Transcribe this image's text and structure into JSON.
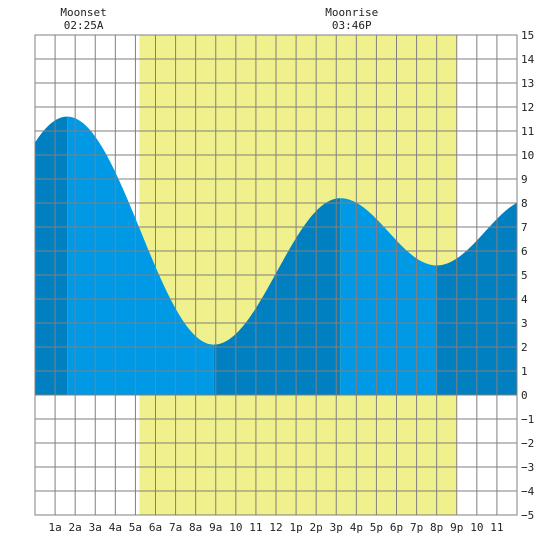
{
  "chart_data": {
    "type": "area",
    "title": "",
    "xlabel": "",
    "ylabel": "",
    "x_tick_labels": [
      "1a",
      "2a",
      "3a",
      "4a",
      "5a",
      "6a",
      "7a",
      "8a",
      "9a",
      "10",
      "11",
      "12",
      "1p",
      "2p",
      "3p",
      "4p",
      "5p",
      "6p",
      "7p",
      "8p",
      "9p",
      "10",
      "11"
    ],
    "y_ticks": [
      15,
      14,
      13,
      12,
      11,
      10,
      9,
      8,
      7,
      6,
      5,
      4,
      3,
      2,
      1,
      0,
      -1,
      -2,
      -3,
      -4,
      -5
    ],
    "y_tick_labels": [
      "15",
      "14",
      "13",
      "12",
      "11",
      "10",
      "9",
      "8",
      "7",
      "6",
      "5",
      "4",
      "3",
      "2",
      "1",
      "0",
      "−1",
      "−2",
      "−3",
      "−4",
      "−5"
    ],
    "xlim": [
      0,
      24
    ],
    "ylim": [
      -5,
      15
    ],
    "grid": true,
    "daylight": {
      "start_hour": 5.2,
      "end_hour": 21.0
    },
    "extrema": [
      {
        "hour": 1.6,
        "height": 11.6,
        "kind": "high"
      },
      {
        "hour": 8.9,
        "height": 2.1,
        "kind": "low"
      },
      {
        "hour": 15.2,
        "height": 8.2,
        "kind": "high"
      },
      {
        "hour": 20.0,
        "height": 5.4,
        "kind": "low"
      }
    ],
    "start_height": 10.6,
    "end_height": 9.6,
    "moon_events": [
      {
        "label": "Moonset",
        "time": "02:25A",
        "hour": 2.42
      },
      {
        "label": "Moonrise",
        "time": "03:46P",
        "hour": 15.77
      }
    ],
    "colors": {
      "daylight": "#f0f08c",
      "tide_light": "#0099e6",
      "tide_dark": "#0080c0",
      "grid": "#808080"
    }
  }
}
